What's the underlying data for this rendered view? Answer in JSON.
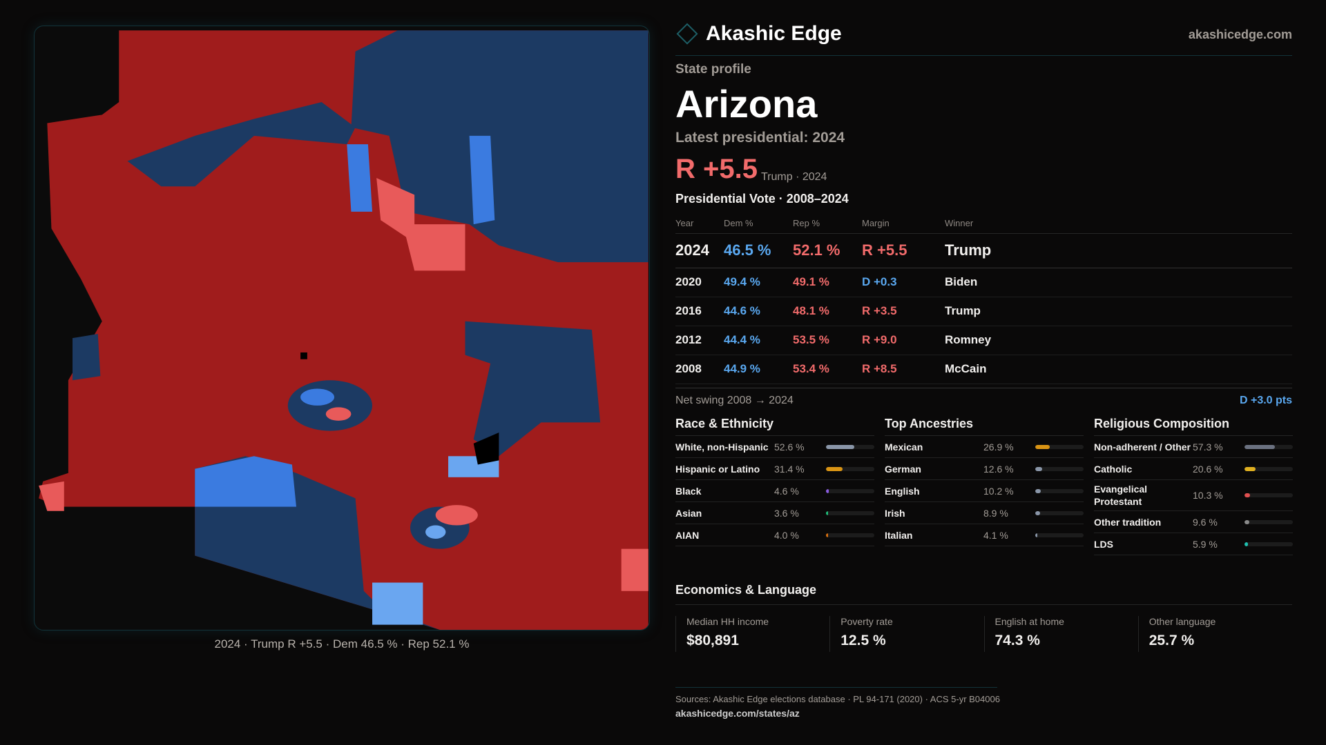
{
  "brand": {
    "name": "Akashic Edge",
    "site": "akashicedge.com",
    "logo_icon": "diamond-icon"
  },
  "profile": {
    "kicker": "State profile",
    "state": "Arizona",
    "latest": "Latest presidential: 2024",
    "margin": "R +5.5",
    "margin_sub": "Trump · 2024"
  },
  "map": {
    "caption": "2024 · Trump R +5.5 · Dem 46.5 % · Rep 52.1 %",
    "colors": {
      "rep_strong": "#a01c1c",
      "rep_light": "#e85a5a",
      "dem_strong": "#1c3a63",
      "dem": "#3b7be0",
      "dem_light": "#6aa6f0"
    }
  },
  "vote": {
    "title": "Presidential Vote · 2008–2024",
    "headers": [
      "Year",
      "Dem %",
      "Rep %",
      "Margin",
      "Winner"
    ],
    "rows": [
      {
        "year": "2024",
        "dem": "46.5 %",
        "rep": "52.1 %",
        "margin": "R +5.5",
        "winner": "Trump",
        "party": "rep"
      },
      {
        "year": "2020",
        "dem": "49.4 %",
        "rep": "49.1 %",
        "margin": "D +0.3",
        "winner": "Biden",
        "party": "dem"
      },
      {
        "year": "2016",
        "dem": "44.6 %",
        "rep": "48.1 %",
        "margin": "R +3.5",
        "winner": "Trump",
        "party": "rep"
      },
      {
        "year": "2012",
        "dem": "44.4 %",
        "rep": "53.5 %",
        "margin": "R +9.0",
        "winner": "Romney",
        "party": "rep"
      },
      {
        "year": "2008",
        "dem": "44.9 %",
        "rep": "53.4 %",
        "margin": "R +8.5",
        "winner": "McCain",
        "party": "rep"
      }
    ]
  },
  "swing": {
    "label": "Net swing 2008 → 2024",
    "value": "D +3.0 pts"
  },
  "race": {
    "title": "Race & Ethnicity",
    "items": [
      {
        "label": "White, non-Hispanic",
        "value": "52.6 %",
        "pct": 52.6,
        "color": "#8a96a8"
      },
      {
        "label": "Hispanic or Latino",
        "value": "31.4 %",
        "pct": 31.4,
        "color": "#d99414"
      },
      {
        "label": "Black",
        "value": "4.6 %",
        "pct": 4.6,
        "color": "#8a5ce0"
      },
      {
        "label": "Asian",
        "value": "3.6 %",
        "pct": 3.6,
        "color": "#1fbf7a"
      },
      {
        "label": "AIAN",
        "value": "4.0 %",
        "pct": 4.0,
        "color": "#d9700f"
      }
    ]
  },
  "ancestry": {
    "title": "Top Ancestries",
    "items": [
      {
        "label": "Mexican",
        "value": "26.9 %",
        "pct": 26.9,
        "color": "#d99414"
      },
      {
        "label": "German",
        "value": "12.6 %",
        "pct": 12.6,
        "color": "#8a96a8"
      },
      {
        "label": "English",
        "value": "10.2 %",
        "pct": 10.2,
        "color": "#8a96a8"
      },
      {
        "label": "Irish",
        "value": "8.9 %",
        "pct": 8.9,
        "color": "#8a96a8"
      },
      {
        "label": "Italian",
        "value": "4.1 %",
        "pct": 4.1,
        "color": "#8a96a8"
      }
    ]
  },
  "religion": {
    "title": "Religious Composition",
    "items": [
      {
        "label": "Non-adherent / Other",
        "value": "57.3 %",
        "pct": 57.3,
        "color": "#6b7180"
      },
      {
        "label": "Catholic",
        "value": "20.6 %",
        "pct": 20.6,
        "color": "#e0b020"
      },
      {
        "label": "Evangelical Protestant",
        "value": "10.3 %",
        "pct": 10.3,
        "color": "#e05050"
      },
      {
        "label": "Other tradition",
        "value": "9.6 %",
        "pct": 9.6,
        "color": "#8a8a8a"
      },
      {
        "label": "LDS",
        "value": "5.9 %",
        "pct": 5.9,
        "color": "#1fc0b0"
      }
    ]
  },
  "economics": {
    "title": "Economics & Language",
    "cards": [
      {
        "label": "Median HH income",
        "value": "$80,891"
      },
      {
        "label": "Poverty rate",
        "value": "12.5 %"
      },
      {
        "label": "English at home",
        "value": "74.3 %"
      },
      {
        "label": "Other language",
        "value": "25.7 %"
      }
    ]
  },
  "footer": {
    "sources": "Sources: Akashic Edge elections database · PL 94-171 (2020) · ACS 5-yr B04006",
    "url": "akashicedge.com/states/az"
  }
}
